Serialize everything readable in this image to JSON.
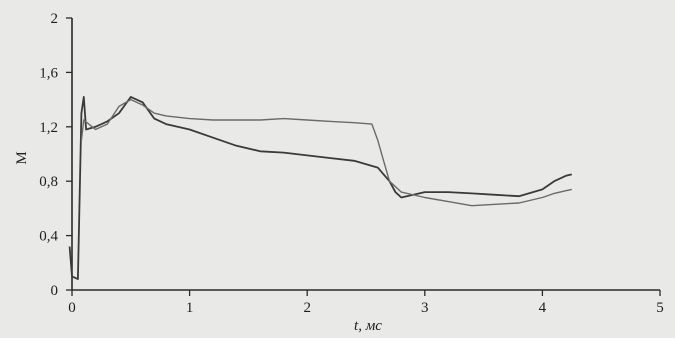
{
  "chart_data": {
    "type": "line",
    "xlabel": "t, мс",
    "ylabel": "M",
    "xlim": [
      0,
      5
    ],
    "ylim": [
      0,
      2
    ],
    "x_ticks": [
      0,
      1,
      2,
      3,
      4,
      5
    ],
    "x_tick_labels": [
      "0",
      "1",
      "2",
      "3",
      "4",
      "5"
    ],
    "y_ticks": [
      0,
      0.4,
      0.8,
      1.2,
      1.6,
      2
    ],
    "y_tick_labels": [
      "0",
      "0,4",
      "0,8",
      "1,2",
      "1,6",
      "2"
    ],
    "grid": false,
    "legend": "none",
    "series": [
      {
        "color": "#3a3a3a",
        "points": [
          [
            -0.02,
            0.32
          ],
          [
            0.0,
            0.1
          ],
          [
            0.05,
            0.08
          ],
          [
            0.08,
            1.3
          ],
          [
            0.1,
            1.42
          ],
          [
            0.12,
            1.18
          ],
          [
            0.2,
            1.2
          ],
          [
            0.3,
            1.24
          ],
          [
            0.4,
            1.3
          ],
          [
            0.5,
            1.42
          ],
          [
            0.6,
            1.38
          ],
          [
            0.7,
            1.26
          ],
          [
            0.8,
            1.22
          ],
          [
            1.0,
            1.18
          ],
          [
            1.2,
            1.12
          ],
          [
            1.4,
            1.06
          ],
          [
            1.6,
            1.02
          ],
          [
            1.8,
            1.01
          ],
          [
            2.0,
            0.99
          ],
          [
            2.2,
            0.97
          ],
          [
            2.4,
            0.95
          ],
          [
            2.6,
            0.9
          ],
          [
            2.7,
            0.8
          ],
          [
            2.75,
            0.72
          ],
          [
            2.8,
            0.68
          ],
          [
            3.0,
            0.72
          ],
          [
            3.2,
            0.72
          ],
          [
            3.4,
            0.71
          ],
          [
            3.6,
            0.7
          ],
          [
            3.8,
            0.69
          ],
          [
            4.0,
            0.74
          ],
          [
            4.1,
            0.8
          ],
          [
            4.2,
            0.84
          ],
          [
            4.25,
            0.85
          ]
        ]
      },
      {
        "color": "#6a6a6a",
        "points": [
          [
            0.08,
            1.1
          ],
          [
            0.1,
            1.25
          ],
          [
            0.2,
            1.18
          ],
          [
            0.3,
            1.22
          ],
          [
            0.4,
            1.35
          ],
          [
            0.5,
            1.4
          ],
          [
            0.6,
            1.36
          ],
          [
            0.7,
            1.3
          ],
          [
            0.8,
            1.28
          ],
          [
            1.0,
            1.26
          ],
          [
            1.2,
            1.25
          ],
          [
            1.4,
            1.25
          ],
          [
            1.6,
            1.25
          ],
          [
            1.8,
            1.26
          ],
          [
            2.0,
            1.25
          ],
          [
            2.2,
            1.24
          ],
          [
            2.4,
            1.23
          ],
          [
            2.55,
            1.22
          ],
          [
            2.6,
            1.1
          ],
          [
            2.65,
            0.95
          ],
          [
            2.7,
            0.8
          ],
          [
            2.8,
            0.72
          ],
          [
            3.0,
            0.68
          ],
          [
            3.2,
            0.65
          ],
          [
            3.4,
            0.62
          ],
          [
            3.6,
            0.63
          ],
          [
            3.8,
            0.64
          ],
          [
            4.0,
            0.68
          ],
          [
            4.1,
            0.71
          ],
          [
            4.2,
            0.73
          ],
          [
            4.25,
            0.74
          ]
        ]
      }
    ]
  }
}
